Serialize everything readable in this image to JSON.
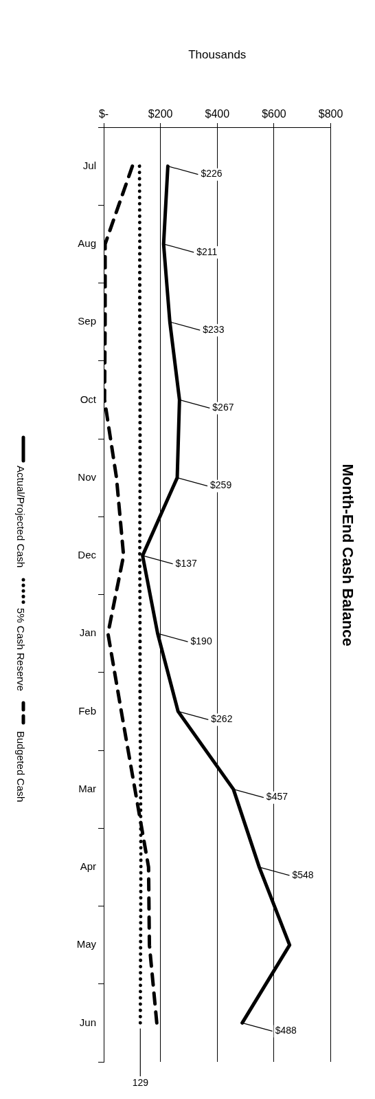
{
  "chart_data": {
    "type": "line",
    "orientation": "horizontal",
    "title": "Month-End Cash Balance",
    "xlabel": "Thousands",
    "categories": [
      "Jul",
      "Aug",
      "Sep",
      "Oct",
      "Nov",
      "Dec",
      "Jan",
      "Feb",
      "Mar",
      "Apr",
      "May",
      "Jun"
    ],
    "xlim": [
      0,
      800
    ],
    "xticks": [
      {
        "value": 0,
        "label": "$-"
      },
      {
        "value": 200,
        "label": "$200"
      },
      {
        "value": 400,
        "label": "$400"
      },
      {
        "value": 600,
        "label": "$600"
      },
      {
        "value": 800,
        "label": "$800"
      }
    ],
    "grid": "x",
    "legend": "left",
    "marker": "none",
    "series": [
      {
        "name": "Actual/Projected Cash",
        "color": "#000000",
        "line_style": "solid",
        "values": [
          226,
          211,
          233,
          267,
          259,
          137,
          190,
          262,
          457,
          548,
          655,
          488
        ],
        "value_labels": [
          "$226",
          "$211",
          "$233",
          "$267",
          "$259",
          "$137",
          "$190",
          "$262",
          "$457",
          "$548",
          null,
          "$488"
        ]
      },
      {
        "name": "5% Cash Reserve",
        "color": "#000000",
        "line_style": "dotted",
        "values": [
          126,
          127,
          127,
          128,
          128,
          127,
          128,
          128,
          130,
          131,
          130,
          129
        ],
        "value_labels": [
          null,
          null,
          null,
          null,
          null,
          null,
          null,
          null,
          null,
          null,
          null,
          "129"
        ]
      },
      {
        "name": "Budgeted Cash",
        "color": "#000000",
        "line_style": "dashed",
        "values": [
          101,
          5,
          5,
          3,
          45,
          70,
          15,
          62,
          110,
          158,
          161,
          187
        ]
      }
    ]
  }
}
